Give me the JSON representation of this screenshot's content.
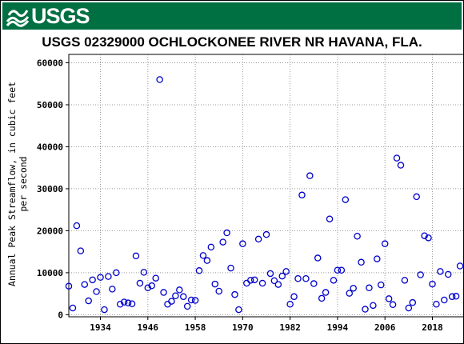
{
  "header": {
    "agency": "USGS",
    "brand_color": "#006f41"
  },
  "chart_data": {
    "type": "scatter",
    "title": "USGS 02329000 OCHLOCKONEE RIVER NR HAVANA, FLA.",
    "xlabel": "",
    "ylabel": "Annual Peak Streamflow, in cubic feet per second",
    "ylabel_lines": [
      "Annual Peak Streamflow, in cubic feet",
      "per second"
    ],
    "xlim": [
      1926,
      2026
    ],
    "ylim": [
      -500,
      62000
    ],
    "x_ticks": [
      1934,
      1946,
      1958,
      1970,
      1982,
      1994,
      2006,
      2018
    ],
    "y_ticks": [
      0,
      10000,
      20000,
      30000,
      40000,
      50000,
      60000
    ],
    "marker": "open-circle",
    "marker_color": "#0000cc",
    "grid": "dotted",
    "points": [
      [
        1926,
        6800
      ],
      [
        1927,
        1600
      ],
      [
        1928,
        21200
      ],
      [
        1929,
        15200
      ],
      [
        1930,
        7200
      ],
      [
        1931,
        3300
      ],
      [
        1932,
        8300
      ],
      [
        1933,
        5500
      ],
      [
        1934,
        8900
      ],
      [
        1935,
        1200
      ],
      [
        1936,
        9100
      ],
      [
        1937,
        6100
      ],
      [
        1938,
        10000
      ],
      [
        1939,
        2500
      ],
      [
        1940,
        3000
      ],
      [
        1941,
        2800
      ],
      [
        1942,
        2600
      ],
      [
        1943,
        14000
      ],
      [
        1944,
        7500
      ],
      [
        1945,
        10100
      ],
      [
        1946,
        6400
      ],
      [
        1947,
        6900
      ],
      [
        1948,
        8700
      ],
      [
        1949,
        56000
      ],
      [
        1950,
        5300
      ],
      [
        1951,
        2500
      ],
      [
        1952,
        3200
      ],
      [
        1953,
        4500
      ],
      [
        1954,
        5900
      ],
      [
        1955,
        4300
      ],
      [
        1956,
        2000
      ],
      [
        1957,
        3500
      ],
      [
        1958,
        3400
      ],
      [
        1959,
        10500
      ],
      [
        1960,
        14100
      ],
      [
        1961,
        12900
      ],
      [
        1962,
        16100
      ],
      [
        1963,
        7300
      ],
      [
        1964,
        5600
      ],
      [
        1965,
        17300
      ],
      [
        1966,
        19500
      ],
      [
        1967,
        11100
      ],
      [
        1968,
        4800
      ],
      [
        1969,
        1200
      ],
      [
        1970,
        16900
      ],
      [
        1971,
        7500
      ],
      [
        1972,
        8200
      ],
      [
        1973,
        8300
      ],
      [
        1974,
        18000
      ],
      [
        1975,
        7500
      ],
      [
        1976,
        19100
      ],
      [
        1977,
        9800
      ],
      [
        1978,
        8100
      ],
      [
        1979,
        7200
      ],
      [
        1980,
        9200
      ],
      [
        1981,
        10300
      ],
      [
        1982,
        2500
      ],
      [
        1983,
        4300
      ],
      [
        1984,
        8600
      ],
      [
        1985,
        28500
      ],
      [
        1986,
        8600
      ],
      [
        1987,
        33100
      ],
      [
        1988,
        7400
      ],
      [
        1989,
        13500
      ],
      [
        1990,
        3900
      ],
      [
        1991,
        5300
      ],
      [
        1992,
        22800
      ],
      [
        1993,
        8200
      ],
      [
        1994,
        10600
      ],
      [
        1995,
        10600
      ],
      [
        1996,
        27400
      ],
      [
        1997,
        5100
      ],
      [
        1998,
        6300
      ],
      [
        1999,
        18700
      ],
      [
        2000,
        12500
      ],
      [
        2001,
        1300
      ],
      [
        2002,
        6400
      ],
      [
        2003,
        2200
      ],
      [
        2004,
        13300
      ],
      [
        2005,
        7100
      ],
      [
        2006,
        16900
      ],
      [
        2007,
        3800
      ],
      [
        2008,
        2400
      ],
      [
        2009,
        37300
      ],
      [
        2010,
        35600
      ],
      [
        2011,
        8200
      ],
      [
        2012,
        1600
      ],
      [
        2013,
        2900
      ],
      [
        2014,
        28100
      ],
      [
        2015,
        9500
      ],
      [
        2016,
        18800
      ],
      [
        2017,
        18300
      ],
      [
        2018,
        7300
      ],
      [
        2019,
        2500
      ],
      [
        2020,
        10300
      ],
      [
        2021,
        3500
      ],
      [
        2022,
        9600
      ],
      [
        2023,
        4300
      ],
      [
        2024,
        4400
      ],
      [
        2025,
        11600
      ]
    ]
  }
}
